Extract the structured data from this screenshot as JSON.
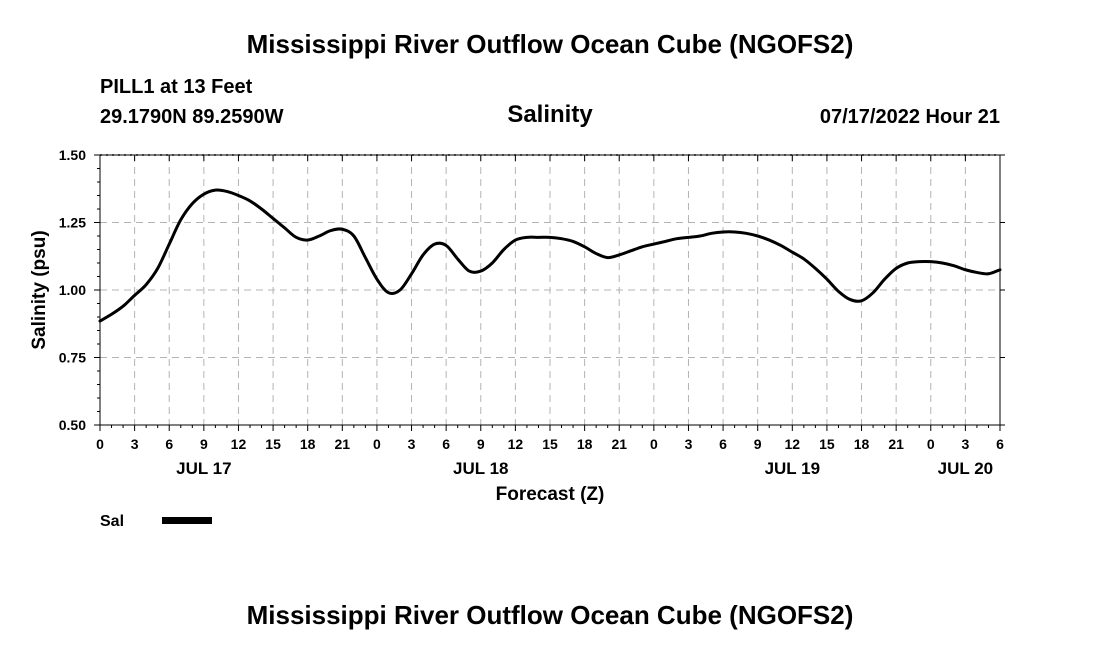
{
  "page_title": "Mississippi River Outflow Ocean Cube (NGOFS2)",
  "footer_title": "Mississippi River Outflow Ocean Cube (NGOFS2)",
  "station": {
    "name_depth": "PILL1 at 13 Feet",
    "coords": "29.1790N  89.2590W",
    "datetime": "07/17/2022 Hour 21"
  },
  "legend": {
    "label": "Sal",
    "color": "#000000"
  },
  "chart_data": {
    "type": "line",
    "title": "Salinity",
    "xlabel": "Forecast (Z)",
    "ylabel": "Salinity (psu)",
    "ylim": [
      0.5,
      1.5
    ],
    "xlim": [
      0,
      78
    ],
    "grid": true,
    "y_ticks": [
      "0.50",
      "0.75",
      "1.00",
      "1.25",
      "1.50"
    ],
    "x_tick_labels": [
      "0",
      "3",
      "6",
      "9",
      "12",
      "15",
      "18",
      "21",
      "0",
      "3",
      "6",
      "9",
      "12",
      "15",
      "18",
      "21",
      "0",
      "3",
      "6",
      "9",
      "12",
      "15",
      "18",
      "21",
      "0",
      "3",
      "6"
    ],
    "date_labels": [
      {
        "label": "JUL 17",
        "hour": 9
      },
      {
        "label": "JUL 18",
        "hour": 33
      },
      {
        "label": "JUL 19",
        "hour": 60
      },
      {
        "label": "JUL 20",
        "hour": 75
      }
    ],
    "series": [
      {
        "name": "Sal",
        "x": [
          0,
          1,
          2,
          3,
          4,
          5,
          6,
          7,
          8,
          9,
          10,
          11,
          12,
          13,
          14,
          15,
          16,
          17,
          18,
          19,
          20,
          21,
          22,
          23,
          24,
          25,
          26,
          27,
          28,
          29,
          30,
          31,
          32,
          33,
          34,
          35,
          36,
          37,
          38,
          39,
          40,
          41,
          42,
          43,
          44,
          45,
          46,
          47,
          48,
          49,
          50,
          51,
          52,
          53,
          54,
          55,
          56,
          57,
          58,
          59,
          60,
          61,
          62,
          63,
          64,
          65,
          66,
          67,
          68,
          69,
          70,
          71,
          72,
          73,
          74,
          75,
          76,
          77,
          78
        ],
        "values": [
          0.885,
          0.91,
          0.94,
          0.98,
          1.02,
          1.08,
          1.17,
          1.26,
          1.32,
          1.355,
          1.37,
          1.365,
          1.35,
          1.33,
          1.3,
          1.265,
          1.23,
          1.195,
          1.185,
          1.2,
          1.22,
          1.225,
          1.2,
          1.12,
          1.04,
          0.99,
          1.0,
          1.06,
          1.13,
          1.17,
          1.165,
          1.115,
          1.07,
          1.07,
          1.1,
          1.15,
          1.185,
          1.195,
          1.195,
          1.195,
          1.19,
          1.18,
          1.16,
          1.135,
          1.12,
          1.13,
          1.145,
          1.16,
          1.17,
          1.18,
          1.19,
          1.195,
          1.2,
          1.21,
          1.215,
          1.215,
          1.21,
          1.2,
          1.185,
          1.165,
          1.14,
          1.115,
          1.08,
          1.04,
          0.995,
          0.965,
          0.96,
          0.99,
          1.04,
          1.08,
          1.1,
          1.105,
          1.105,
          1.1,
          1.09,
          1.075,
          1.065,
          1.06,
          1.075
        ]
      }
    ]
  }
}
